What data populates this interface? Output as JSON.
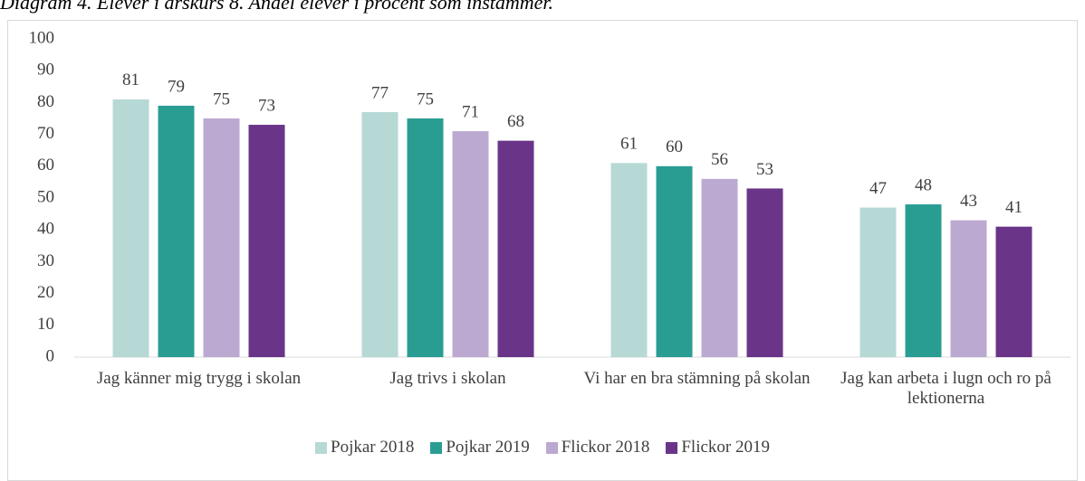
{
  "chart_data": {
    "type": "bar",
    "title": "Diagram 4. Elever i årskurs 8. Andel elever i procent som instämmer.",
    "categories": [
      "Jag känner mig trygg i skolan",
      "Jag trivs i skolan",
      "Vi har en bra stämning på skolan",
      "Jag kan arbeta i lugn och ro på lektionerna"
    ],
    "series": [
      {
        "name": "Pojkar 2018",
        "color": "#b7d9d6",
        "values": [
          81,
          77,
          61,
          47
        ]
      },
      {
        "name": "Pojkar 2019",
        "color": "#2a9d93",
        "values": [
          79,
          75,
          60,
          48
        ]
      },
      {
        "name": "Flickor 2018",
        "color": "#bca9d1",
        "values": [
          75,
          71,
          56,
          43
        ]
      },
      {
        "name": "Flickor 2019",
        "color": "#6a3589",
        "values": [
          73,
          68,
          53,
          41
        ]
      }
    ],
    "ylim": [
      0,
      100
    ],
    "yticks": [
      0,
      10,
      20,
      30,
      40,
      50,
      60,
      70,
      80,
      90,
      100
    ],
    "grid": false,
    "legend": "bottom"
  }
}
